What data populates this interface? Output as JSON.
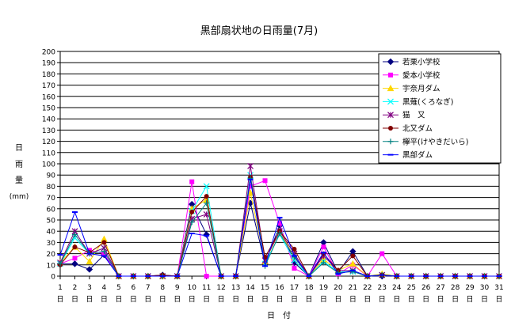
{
  "chart_data": {
    "type": "line",
    "title": "黒部扇状地の日雨量(7月)",
    "xlabel": "日　付",
    "ylabel_lines": [
      "日",
      "雨",
      "量",
      "(mm)"
    ],
    "categories": [
      "1",
      "2",
      "3",
      "4",
      "5",
      "6",
      "7",
      "8",
      "9",
      "10",
      "11",
      "12",
      "13",
      "14",
      "15",
      "16",
      "17",
      "18",
      "19",
      "20",
      "21",
      "22",
      "23",
      "24",
      "25",
      "26",
      "27",
      "28",
      "29",
      "30",
      "31"
    ],
    "x_day_suffix": "日",
    "ylim": [
      0,
      200
    ],
    "y_ticks": [
      0,
      10,
      20,
      30,
      40,
      50,
      60,
      70,
      80,
      90,
      100,
      110,
      120,
      130,
      140,
      150,
      160,
      170,
      180,
      190,
      200
    ],
    "grid": true,
    "legend_position": "top-right",
    "series": [
      {
        "name": "若栗小学校",
        "color": "#000080",
        "marker": "diamond",
        "values": [
          11,
          11,
          6,
          19,
          0,
          0,
          0,
          1,
          0,
          64,
          37,
          0,
          0,
          65,
          11,
          45,
          12,
          0,
          30,
          3,
          22,
          0,
          0,
          0,
          0,
          0,
          0,
          0,
          0,
          0,
          0
        ]
      },
      {
        "name": "愛本小学校",
        "color": "#ff00ff",
        "marker": "square",
        "values": [
          11,
          16,
          23,
          20,
          0,
          0,
          0,
          0,
          0,
          84,
          0,
          0,
          0,
          80,
          85,
          47,
          7,
          0,
          26,
          2,
          10,
          0,
          20,
          0,
          0,
          0,
          0,
          0,
          0,
          0,
          0
        ]
      },
      {
        "name": "宇奈月ダム",
        "color": "#ffd700",
        "marker": "triangle",
        "values": [
          12,
          26,
          13,
          33,
          0,
          0,
          0,
          0,
          0,
          60,
          68,
          0,
          0,
          74,
          13,
          40,
          17,
          0,
          15,
          5,
          11,
          0,
          2,
          0,
          0,
          0,
          0,
          0,
          0,
          0,
          0
        ]
      },
      {
        "name": "黒薙(くろなぎ)",
        "color": "#00ffff",
        "marker": "x",
        "values": [
          11,
          34,
          20,
          25,
          0,
          0,
          0,
          0,
          0,
          58,
          80,
          0,
          0,
          90,
          11,
          37,
          14,
          0,
          13,
          4,
          4,
          0,
          1,
          0,
          0,
          0,
          0,
          0,
          0,
          0,
          0
        ]
      },
      {
        "name": "猫　又",
        "color": "#800080",
        "marker": "star",
        "values": [
          12,
          40,
          20,
          25,
          0,
          0,
          0,
          0,
          0,
          51,
          55,
          0,
          0,
          98,
          14,
          40,
          20,
          0,
          18,
          5,
          5,
          0,
          1,
          0,
          0,
          0,
          0,
          0,
          0,
          0,
          0
        ]
      },
      {
        "name": "北又ダム",
        "color": "#800000",
        "marker": "circle",
        "values": [
          10,
          26,
          21,
          30,
          0,
          0,
          0,
          1,
          0,
          57,
          71,
          0,
          0,
          88,
          17,
          40,
          24,
          0,
          20,
          5,
          18,
          0,
          1,
          0,
          0,
          0,
          0,
          0,
          0,
          0,
          0
        ]
      },
      {
        "name": "欅平(けやきだいら)",
        "color": "#008080",
        "marker": "plus",
        "values": [
          11,
          37,
          20,
          22,
          0,
          0,
          0,
          0,
          0,
          48,
          65,
          0,
          0,
          87,
          9,
          38,
          17,
          0,
          12,
          3,
          4,
          0,
          1,
          0,
          0,
          0,
          0,
          0,
          0,
          0,
          0
        ]
      },
      {
        "name": "黒部ダム",
        "color": "#0000ff",
        "marker": "dash",
        "values": [
          19,
          57,
          20,
          18,
          0,
          0,
          0,
          0,
          0,
          38,
          36,
          0,
          0,
          86,
          9,
          52,
          18,
          0,
          21,
          2,
          5,
          0,
          1,
          0,
          0,
          0,
          0,
          0,
          0,
          0,
          0
        ]
      }
    ]
  }
}
